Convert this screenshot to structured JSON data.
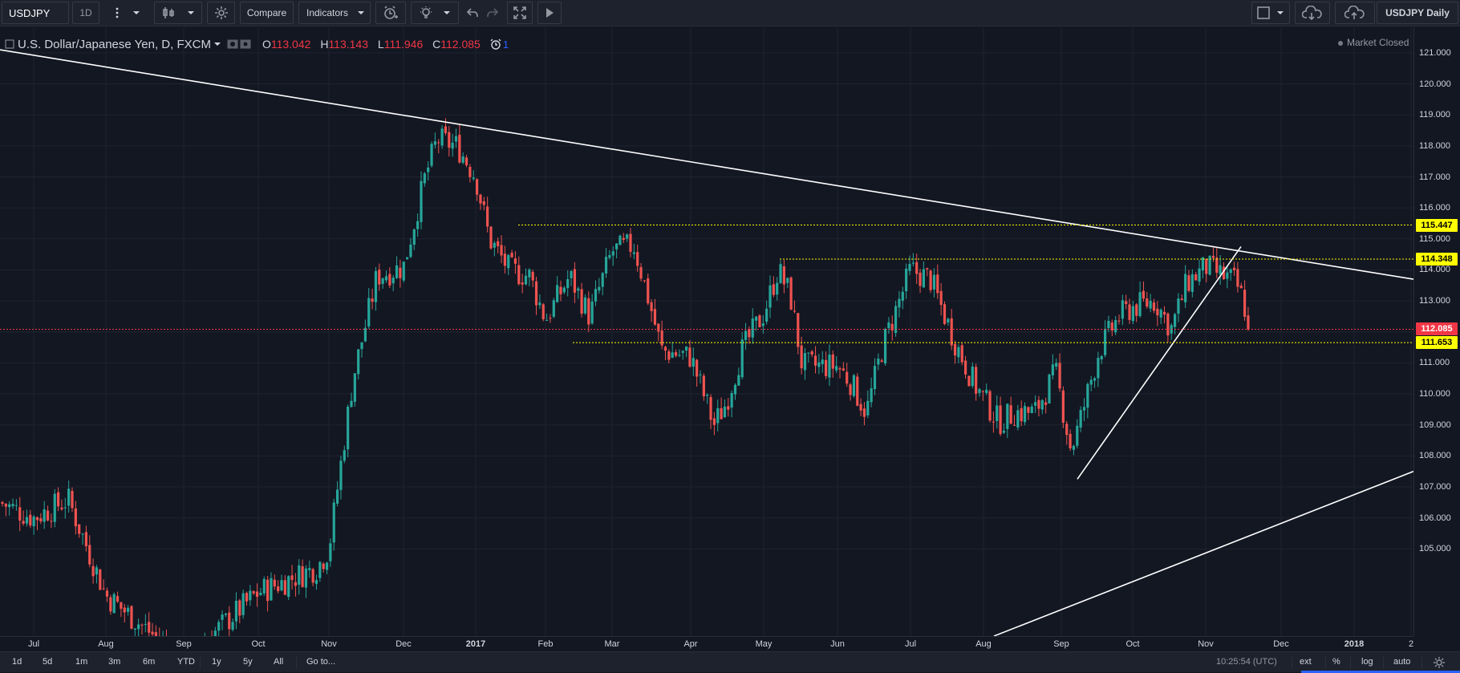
{
  "toolbar": {
    "symbol": "USDJPY",
    "interval": "1D",
    "compare_label": "Compare",
    "indicators_label": "Indicators",
    "layout_name": "USDJPY Daily"
  },
  "legend": {
    "title": "U.S. Dollar/Japanese Yen, D, FXCM",
    "open_label": "O",
    "open": "113.042",
    "high_label": "H",
    "high": "113.143",
    "low_label": "L",
    "low": "111.946",
    "close_label": "C",
    "close": "112.085",
    "alerts_count": "1"
  },
  "status": {
    "market": "Market Closed"
  },
  "price_axis": {
    "labels": [
      "121.000",
      "120.000",
      "119.000",
      "118.000",
      "117.000",
      "116.000",
      "115.000",
      "114.000",
      "113.000",
      "112.000",
      "111.000",
      "110.000",
      "109.000",
      "108.000",
      "107.000",
      "106.000",
      "105.000"
    ],
    "badges": [
      {
        "text": "115.447",
        "price": 115.447,
        "bg": "#ffff00",
        "color": "#000000"
      },
      {
        "text": "114.348",
        "price": 114.348,
        "bg": "#ffff00",
        "color": "#000000"
      },
      {
        "text": "112.085",
        "price": 112.085,
        "bg": "#f23645",
        "color": "#ffffff"
      },
      {
        "text": "111.653",
        "price": 111.653,
        "bg": "#ffff00",
        "color": "#000000"
      }
    ]
  },
  "time_axis": {
    "labels": [
      "Jul",
      "Aug",
      "Sep",
      "Oct",
      "Nov",
      "Dec",
      "2017",
      "Feb",
      "Mar",
      "Apr",
      "May",
      "Jun",
      "Jul",
      "Aug",
      "Sep",
      "Oct",
      "Nov",
      "Dec",
      "2018",
      "2"
    ]
  },
  "bottom": {
    "ranges": [
      "1d",
      "5d",
      "1m",
      "3m",
      "6m",
      "YTD",
      "1y",
      "5y",
      "All"
    ],
    "goto_label": "Go to...",
    "clock": "10:25:54 (UTC)",
    "ext_label": "ext",
    "percent_label": "%",
    "log_label": "log",
    "auto_label": "auto"
  },
  "chart_data": {
    "type": "candlestick",
    "series_name": "U.S. Dollar/Japanese Yen, D, FXCM",
    "ylim": [
      104.7,
      121.5
    ],
    "colors": {
      "up": "#26a69a",
      "down": "#ef5350",
      "trendline": "#ffffff",
      "level": "#ffff00",
      "last_price": "#f23645"
    },
    "x_labels": [
      "Jul",
      "Aug",
      "Sep",
      "Oct",
      "Nov",
      "Dec",
      "2017",
      "Feb",
      "Mar",
      "Apr",
      "May",
      "Jun",
      "Jul",
      "Aug",
      "Sep",
      "Oct",
      "Nov",
      "Dec",
      "2018"
    ],
    "approx_closes": {
      "2016-07": 106.5,
      "2016-08": 103.4,
      "2016-09": 101.4,
      "2016-10": 104.8,
      "2016-11": 112.3,
      "2016-12": 117.0,
      "2017-01": 114.7,
      "2017-02": 112.8,
      "2017-03": 111.4,
      "2017-04": 111.5,
      "2017-05": 110.8,
      "2017-06": 112.4,
      "2017-07": 110.3,
      "2017-08": 110.0,
      "2017-09": 112.5,
      "2017-10": 113.6,
      "2017-11": 112.085
    },
    "ohlc_last": {
      "open": 113.042,
      "high": 113.143,
      "low": 111.946,
      "close": 112.085
    },
    "horizontal_levels": [
      115.447,
      114.348,
      111.653
    ],
    "last_price": 112.085
  }
}
